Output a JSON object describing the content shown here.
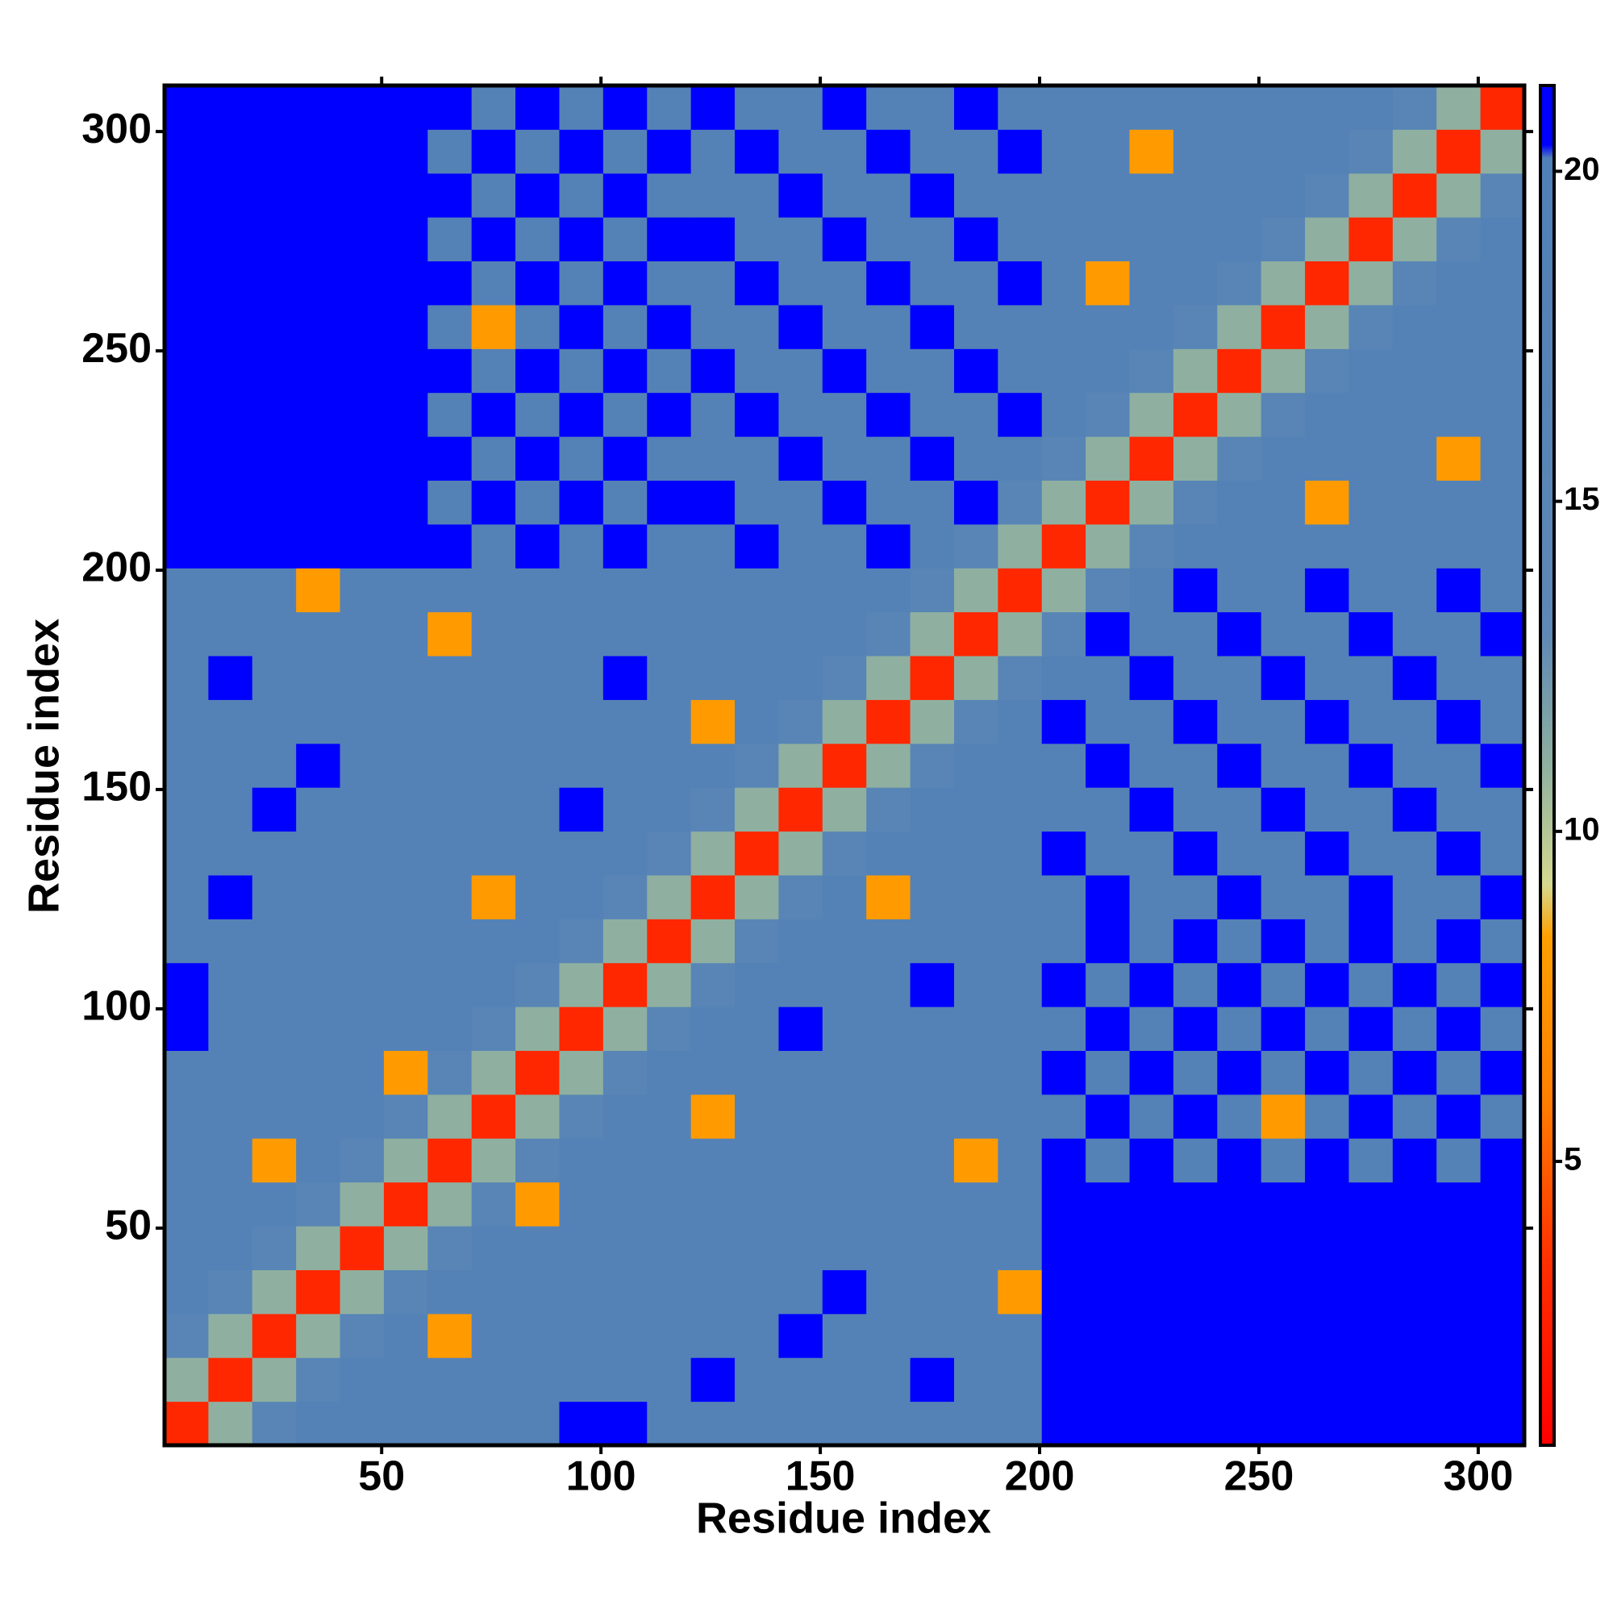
{
  "chart_data": {
    "type": "heatmap",
    "x_label": "Residue index",
    "y_label": "Residue index",
    "x_edges": [
      0.5,
      10.5,
      20.5,
      30.5,
      40.5,
      50.5,
      60.5,
      70.5,
      80.5,
      90.5,
      100.5,
      110.5,
      120.5,
      130.5,
      140.5,
      150.5,
      160.5,
      170.5,
      180.5,
      190.5,
      200.5,
      210.5,
      220.5,
      230.5,
      240.5,
      250.5,
      260.5,
      270.5,
      280.5,
      290.5,
      300.5,
      310.5
    ],
    "y_edges": [
      0.5,
      10.5,
      20.5,
      30.5,
      40.5,
      50.5,
      60.5,
      70.5,
      80.5,
      90.5,
      100.5,
      110.5,
      120.5,
      130.5,
      140.5,
      150.5,
      160.5,
      170.5,
      180.5,
      190.5,
      200.5,
      210.5,
      220.5,
      230.5,
      240.5,
      250.5,
      260.5,
      270.5,
      280.5,
      290.5,
      300.5,
      310.5
    ],
    "xlim": [
      0.5,
      310.5
    ],
    "ylim": [
      0.5,
      310.5
    ],
    "xticks": [
      50,
      100,
      150,
      200,
      250,
      300
    ],
    "yticks": [
      50,
      100,
      150,
      200,
      250,
      300
    ],
    "clim": [
      0.7,
      21.3
    ],
    "cticks": [
      5,
      10,
      15,
      20
    ],
    "colorscale": [
      {
        "value": 0.7,
        "color": "#ff0000"
      },
      {
        "value": 3.5,
        "color": "#ff3000"
      },
      {
        "value": 6,
        "color": "#ff8000"
      },
      {
        "value": 8.4,
        "color": "#ffa000"
      },
      {
        "value": 9.2,
        "color": "#d4d890"
      },
      {
        "value": 11,
        "color": "#8fb0a0"
      },
      {
        "value": 13,
        "color": "#5e88b5"
      },
      {
        "value": 20.2,
        "color": "#5080b8"
      },
      {
        "value": 20.4,
        "color": "#0000ff"
      },
      {
        "value": 21.3,
        "color": "#0000ff"
      }
    ],
    "z": [
      [
        3,
        11,
        16,
        18,
        18,
        18,
        18,
        18,
        18,
        21,
        21,
        18,
        18,
        18,
        18,
        18,
        18,
        18,
        18,
        18,
        21,
        21,
        21,
        21,
        21,
        21,
        21,
        21,
        21,
        21,
        21
      ],
      [
        11,
        3,
        11,
        16,
        18,
        18,
        18,
        18,
        18,
        18,
        18,
        18,
        21,
        18,
        18,
        18,
        18,
        21,
        18,
        18,
        21,
        21,
        21,
        21,
        21,
        21,
        21,
        21,
        21,
        21,
        21
      ],
      [
        16,
        11,
        3,
        11,
        16,
        18,
        8,
        18,
        18,
        18,
        18,
        18,
        18,
        18,
        21,
        18,
        18,
        18,
        18,
        18,
        21,
        21,
        21,
        21,
        21,
        21,
        21,
        21,
        21,
        21,
        21
      ],
      [
        18,
        16,
        11,
        3,
        11,
        16,
        18,
        18,
        18,
        18,
        18,
        18,
        18,
        18,
        18,
        21,
        18,
        18,
        18,
        8,
        21,
        21,
        21,
        21,
        21,
        21,
        21,
        21,
        21,
        21,
        21
      ],
      [
        18,
        18,
        16,
        11,
        3,
        11,
        16,
        18,
        18,
        18,
        18,
        18,
        18,
        18,
        18,
        18,
        18,
        18,
        18,
        18,
        21,
        21,
        21,
        21,
        21,
        21,
        21,
        21,
        21,
        21,
        21
      ],
      [
        18,
        18,
        18,
        16,
        11,
        3,
        11,
        16,
        8,
        18,
        18,
        18,
        18,
        18,
        18,
        18,
        18,
        18,
        18,
        18,
        21,
        21,
        21,
        21,
        21,
        21,
        21,
        21,
        21,
        21,
        21
      ],
      [
        18,
        18,
        8,
        18,
        16,
        11,
        3,
        11,
        16,
        18,
        18,
        18,
        18,
        18,
        18,
        18,
        18,
        18,
        8,
        18,
        21,
        18,
        21,
        18,
        21,
        18,
        21,
        18,
        21,
        18,
        21
      ],
      [
        18,
        18,
        18,
        18,
        18,
        16,
        11,
        3,
        11,
        16,
        18,
        18,
        8,
        18,
        18,
        18,
        18,
        18,
        18,
        18,
        18,
        21,
        18,
        21,
        18,
        8,
        18,
        21,
        18,
        21,
        18
      ],
      [
        18,
        18,
        18,
        18,
        18,
        8,
        16,
        11,
        3,
        11,
        16,
        18,
        18,
        18,
        18,
        18,
        18,
        18,
        18,
        18,
        21,
        18,
        21,
        18,
        21,
        18,
        21,
        18,
        21,
        18,
        21
      ],
      [
        21,
        18,
        18,
        18,
        18,
        18,
        18,
        16,
        11,
        3,
        11,
        16,
        18,
        18,
        21,
        18,
        18,
        18,
        18,
        18,
        18,
        21,
        18,
        21,
        18,
        21,
        18,
        21,
        18,
        21,
        18
      ],
      [
        21,
        18,
        18,
        18,
        18,
        18,
        18,
        18,
        16,
        11,
        3,
        11,
        16,
        18,
        18,
        18,
        18,
        21,
        18,
        18,
        21,
        18,
        21,
        18,
        21,
        18,
        21,
        18,
        21,
        18,
        21
      ],
      [
        18,
        18,
        18,
        18,
        18,
        18,
        18,
        18,
        18,
        16,
        11,
        3,
        11,
        16,
        18,
        18,
        18,
        18,
        18,
        18,
        18,
        21,
        18,
        21,
        18,
        21,
        18,
        21,
        18,
        21,
        18
      ],
      [
        18,
        21,
        18,
        18,
        18,
        18,
        18,
        8,
        18,
        18,
        16,
        11,
        3,
        11,
        16,
        18,
        8,
        18,
        18,
        18,
        18,
        21,
        18,
        18,
        21,
        18,
        18,
        21,
        18,
        18,
        21
      ],
      [
        18,
        18,
        18,
        18,
        18,
        18,
        18,
        18,
        18,
        18,
        18,
        16,
        11,
        3,
        11,
        16,
        18,
        18,
        18,
        18,
        21,
        18,
        18,
        21,
        18,
        18,
        21,
        18,
        18,
        21,
        18
      ],
      [
        18,
        18,
        21,
        18,
        18,
        18,
        18,
        18,
        18,
        21,
        18,
        18,
        16,
        11,
        3,
        11,
        16,
        18,
        18,
        18,
        18,
        18,
        21,
        18,
        18,
        21,
        18,
        18,
        21,
        18,
        18
      ],
      [
        18,
        18,
        18,
        21,
        18,
        18,
        18,
        18,
        18,
        18,
        18,
        18,
        18,
        16,
        11,
        3,
        11,
        16,
        18,
        18,
        18,
        21,
        18,
        18,
        21,
        18,
        18,
        21,
        18,
        18,
        21
      ],
      [
        18,
        18,
        18,
        18,
        18,
        18,
        18,
        18,
        18,
        18,
        18,
        18,
        8,
        18,
        16,
        11,
        3,
        11,
        16,
        18,
        21,
        18,
        18,
        21,
        18,
        18,
        21,
        18,
        18,
        21,
        18
      ],
      [
        18,
        21,
        18,
        18,
        18,
        18,
        18,
        18,
        18,
        18,
        21,
        18,
        18,
        18,
        18,
        16,
        11,
        3,
        11,
        16,
        18,
        18,
        21,
        18,
        18,
        21,
        18,
        18,
        21,
        18,
        18
      ],
      [
        18,
        18,
        18,
        18,
        18,
        18,
        8,
        18,
        18,
        18,
        18,
        18,
        18,
        18,
        18,
        18,
        16,
        11,
        3,
        11,
        16,
        21,
        18,
        18,
        21,
        18,
        18,
        21,
        18,
        18,
        21
      ],
      [
        18,
        18,
        18,
        8,
        18,
        18,
        18,
        18,
        18,
        18,
        18,
        18,
        18,
        18,
        18,
        18,
        18,
        16,
        11,
        3,
        11,
        16,
        18,
        21,
        18,
        18,
        21,
        18,
        18,
        21,
        18
      ],
      [
        21,
        21,
        21,
        21,
        21,
        21,
        21,
        18,
        21,
        18,
        21,
        18,
        18,
        21,
        18,
        18,
        21,
        18,
        16,
        11,
        3,
        11,
        16,
        18,
        18,
        18,
        18,
        18,
        18,
        18,
        18
      ],
      [
        21,
        21,
        21,
        21,
        21,
        21,
        18,
        21,
        18,
        21,
        18,
        21,
        21,
        18,
        18,
        21,
        18,
        18,
        21,
        16,
        11,
        3,
        11,
        16,
        18,
        18,
        8,
        18,
        18,
        18,
        18
      ],
      [
        21,
        21,
        21,
        21,
        21,
        21,
        21,
        18,
        21,
        18,
        21,
        18,
        18,
        18,
        21,
        18,
        18,
        21,
        18,
        18,
        16,
        11,
        3,
        11,
        16,
        18,
        18,
        18,
        18,
        8,
        18
      ],
      [
        21,
        21,
        21,
        21,
        21,
        21,
        18,
        21,
        18,
        21,
        18,
        21,
        18,
        21,
        18,
        18,
        21,
        18,
        18,
        21,
        18,
        16,
        11,
        3,
        11,
        16,
        18,
        18,
        18,
        18,
        18
      ],
      [
        21,
        21,
        21,
        21,
        21,
        21,
        21,
        18,
        21,
        18,
        21,
        18,
        21,
        18,
        18,
        21,
        18,
        18,
        21,
        18,
        18,
        18,
        16,
        11,
        3,
        11,
        16,
        18,
        18,
        18,
        18
      ],
      [
        21,
        21,
        21,
        21,
        21,
        21,
        18,
        8,
        18,
        21,
        18,
        21,
        18,
        18,
        21,
        18,
        18,
        21,
        18,
        18,
        18,
        18,
        18,
        16,
        11,
        3,
        11,
        16,
        18,
        18,
        18
      ],
      [
        21,
        21,
        21,
        21,
        21,
        21,
        21,
        18,
        21,
        18,
        21,
        18,
        18,
        21,
        18,
        18,
        21,
        18,
        18,
        21,
        18,
        8,
        18,
        18,
        16,
        11,
        3,
        11,
        16,
        18,
        18
      ],
      [
        21,
        21,
        21,
        21,
        21,
        21,
        18,
        21,
        18,
        21,
        18,
        21,
        21,
        18,
        18,
        21,
        18,
        18,
        21,
        18,
        18,
        18,
        18,
        18,
        18,
        16,
        11,
        3,
        11,
        16,
        18
      ],
      [
        21,
        21,
        21,
        21,
        21,
        21,
        21,
        18,
        21,
        18,
        21,
        18,
        18,
        18,
        21,
        18,
        18,
        21,
        18,
        18,
        18,
        18,
        18,
        18,
        18,
        18,
        16,
        11,
        3,
        11,
        16
      ],
      [
        21,
        21,
        21,
        21,
        21,
        21,
        18,
        21,
        18,
        21,
        18,
        21,
        18,
        21,
        18,
        18,
        21,
        18,
        18,
        21,
        18,
        18,
        8,
        18,
        18,
        18,
        18,
        16,
        11,
        3,
        11
      ],
      [
        21,
        21,
        21,
        21,
        21,
        21,
        21,
        18,
        21,
        18,
        21,
        18,
        21,
        18,
        18,
        21,
        18,
        18,
        21,
        18,
        18,
        18,
        18,
        18,
        18,
        18,
        18,
        18,
        16,
        11,
        3
      ]
    ]
  }
}
